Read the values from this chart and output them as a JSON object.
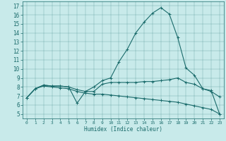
{
  "xlabel": "Humidex (Indice chaleur)",
  "ylabel": "",
  "background_color": "#c8eaea",
  "line_color": "#1a6b6b",
  "xlim": [
    -0.5,
    23.5
  ],
  "ylim": [
    4.5,
    17.5
  ],
  "xticks": [
    0,
    1,
    2,
    3,
    4,
    5,
    6,
    7,
    8,
    9,
    10,
    11,
    12,
    13,
    14,
    15,
    16,
    17,
    18,
    19,
    20,
    21,
    22,
    23
  ],
  "yticks": [
    5,
    6,
    7,
    8,
    9,
    10,
    11,
    12,
    13,
    14,
    15,
    16,
    17
  ],
  "series1_x": [
    0,
    1,
    2,
    3,
    4,
    5,
    6,
    7,
    8,
    9,
    10,
    11,
    12,
    13,
    14,
    15,
    16,
    17,
    18,
    19,
    20,
    21,
    22,
    23
  ],
  "series1_y": [
    6.8,
    7.8,
    8.2,
    8.1,
    8.1,
    8.0,
    7.7,
    7.5,
    8.0,
    8.7,
    9.0,
    10.8,
    12.2,
    14.0,
    15.2,
    16.2,
    16.8,
    16.1,
    13.5,
    10.1,
    9.3,
    7.8,
    7.5,
    6.9
  ],
  "series2_x": [
    0,
    1,
    2,
    3,
    4,
    5,
    6,
    7,
    8,
    9,
    10,
    11,
    12,
    13,
    14,
    15,
    16,
    17,
    18,
    19,
    20,
    21,
    22,
    23
  ],
  "series2_y": [
    6.8,
    7.8,
    8.2,
    8.1,
    8.1,
    8.0,
    6.2,
    7.5,
    7.5,
    8.3,
    8.5,
    8.5,
    8.5,
    8.5,
    8.6,
    8.6,
    8.7,
    8.8,
    9.0,
    8.5,
    8.3,
    7.8,
    7.6,
    5.0
  ],
  "series3_x": [
    0,
    1,
    2,
    3,
    4,
    5,
    6,
    7,
    8,
    9,
    10,
    11,
    12,
    13,
    14,
    15,
    16,
    17,
    18,
    19,
    20,
    21,
    22,
    23
  ],
  "series3_y": [
    6.8,
    7.8,
    8.1,
    8.0,
    7.9,
    7.8,
    7.5,
    7.3,
    7.2,
    7.2,
    7.1,
    7.0,
    6.9,
    6.8,
    6.7,
    6.6,
    6.5,
    6.4,
    6.3,
    6.1,
    5.9,
    5.7,
    5.5,
    5.0
  ]
}
